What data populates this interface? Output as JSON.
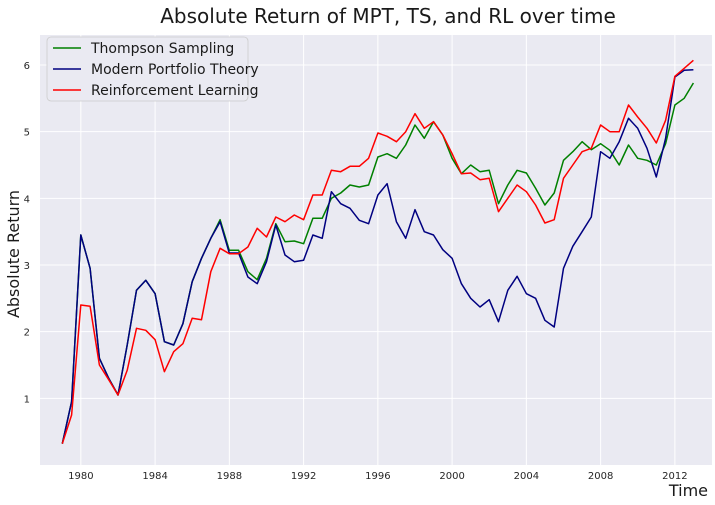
{
  "chart_data": {
    "type": "line",
    "title": "Absolute Return of MPT, TS, and RL over time",
    "xlabel": "Time",
    "ylabel": "Absolute Return",
    "xlim": [
      1977.8,
      2014.0
    ],
    "ylim": [
      0.0,
      6.45
    ],
    "x_ticks": [
      1980,
      1984,
      1988,
      1992,
      1996,
      2000,
      2004,
      2008,
      2012
    ],
    "y_ticks": [
      1,
      2,
      3,
      4,
      5,
      6
    ],
    "grid": true,
    "legend_position": "top-left",
    "x": [
      1979.0,
      1979.5,
      1980.0,
      1980.5,
      1981.0,
      1981.5,
      1982.0,
      1982.5,
      1983.0,
      1983.5,
      1984.0,
      1984.5,
      1985.0,
      1985.5,
      1986.0,
      1986.5,
      1987.0,
      1987.5,
      1988.0,
      1988.5,
      1989.0,
      1989.5,
      1990.0,
      1990.5,
      1991.0,
      1991.5,
      1992.0,
      1992.5,
      1993.0,
      1993.5,
      1994.0,
      1994.5,
      1995.0,
      1995.5,
      1996.0,
      1996.5,
      1997.0,
      1997.5,
      1998.0,
      1998.5,
      1999.0,
      1999.5,
      2000.0,
      2000.5,
      2001.0,
      2001.5,
      2002.0,
      2002.5,
      2003.0,
      2003.5,
      2004.0,
      2004.5,
      2005.0,
      2005.5,
      2006.0,
      2006.5,
      2007.0,
      2007.5,
      2008.0,
      2008.5,
      2009.0,
      2009.5,
      2010.0,
      2010.5,
      2011.0,
      2011.5,
      2012.0,
      2012.5,
      2013.0
    ],
    "series": [
      {
        "name": "Thompson Sampling",
        "color": "#008000",
        "values": [
          0.32,
          0.95,
          3.45,
          2.95,
          1.6,
          1.3,
          1.05,
          1.8,
          2.62,
          2.77,
          2.57,
          1.85,
          1.8,
          2.12,
          2.75,
          3.1,
          3.4,
          3.68,
          3.22,
          3.22,
          2.9,
          2.78,
          3.1,
          3.62,
          3.35,
          3.36,
          3.32,
          3.7,
          3.7,
          4.0,
          4.08,
          4.2,
          4.17,
          4.2,
          4.62,
          4.67,
          4.6,
          4.8,
          5.1,
          4.9,
          5.15,
          4.95,
          4.6,
          4.37,
          4.5,
          4.4,
          4.42,
          3.92,
          4.2,
          4.42,
          4.38,
          4.15,
          3.9,
          4.08,
          4.57,
          4.7,
          4.85,
          4.73,
          4.82,
          4.72,
          4.5,
          4.8,
          4.6,
          4.57,
          4.5,
          4.82,
          5.4,
          5.5,
          5.73
        ]
      },
      {
        "name": "Modern Portfolio Theory",
        "color": "#000080",
        "values": [
          0.32,
          0.95,
          3.45,
          2.95,
          1.6,
          1.3,
          1.05,
          1.8,
          2.62,
          2.77,
          2.57,
          1.85,
          1.8,
          2.12,
          2.75,
          3.1,
          3.4,
          3.65,
          3.18,
          3.18,
          2.82,
          2.72,
          3.05,
          3.6,
          3.15,
          3.05,
          3.07,
          3.45,
          3.4,
          4.1,
          3.92,
          3.85,
          3.67,
          3.62,
          4.05,
          4.22,
          3.65,
          3.4,
          3.83,
          3.5,
          3.45,
          3.23,
          3.1,
          2.72,
          2.5,
          2.37,
          2.48,
          2.15,
          2.62,
          2.83,
          2.57,
          2.5,
          2.17,
          2.07,
          2.95,
          3.28,
          3.5,
          3.72,
          4.7,
          4.6,
          4.85,
          5.2,
          5.05,
          4.75,
          4.32,
          4.9,
          5.82,
          5.92,
          5.93
        ]
      },
      {
        "name": "Reinforcement Learning",
        "color": "#ff0000",
        "values": [
          0.32,
          0.75,
          2.4,
          2.38,
          1.5,
          1.28,
          1.05,
          1.42,
          2.05,
          2.02,
          1.88,
          1.4,
          1.7,
          1.82,
          2.2,
          2.18,
          2.9,
          3.25,
          3.17,
          3.17,
          3.27,
          3.55,
          3.42,
          3.72,
          3.65,
          3.75,
          3.68,
          4.05,
          4.05,
          4.42,
          4.4,
          4.48,
          4.48,
          4.6,
          4.98,
          4.93,
          4.85,
          5.0,
          5.27,
          5.05,
          5.15,
          4.95,
          4.67,
          4.37,
          4.38,
          4.28,
          4.3,
          3.8,
          4.0,
          4.2,
          4.1,
          3.9,
          3.63,
          3.68,
          4.3,
          4.5,
          4.7,
          4.75,
          5.1,
          5.0,
          5.0,
          5.4,
          5.22,
          5.05,
          4.83,
          5.17,
          5.83,
          5.95,
          6.07
        ]
      }
    ]
  }
}
